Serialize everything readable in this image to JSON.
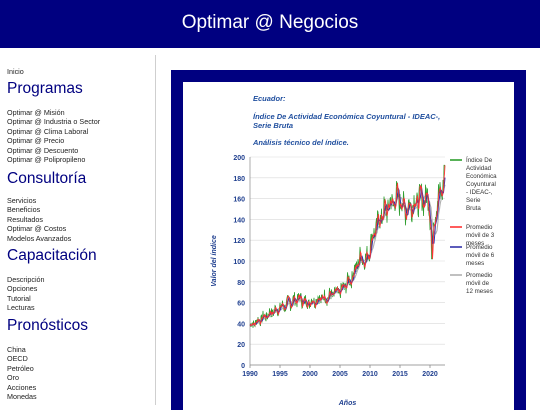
{
  "header": {
    "title": "Optimar @ Negocios"
  },
  "sidebar": {
    "home": "Inicio",
    "sections": [
      {
        "title": "Programas",
        "items": [
          "Optimar @ Misión",
          "Optimar @ Industria o Sector",
          "Optimar @ Clima Laboral",
          "Optimar @ Precio",
          "Optimar @ Descuento",
          "Optimar @ Polipropileno"
        ]
      },
      {
        "title": "Consultoría",
        "items": [
          "Servicios",
          "Beneficios",
          "Resultados",
          "Optimar @ Costos",
          "Modelos Avanzados"
        ]
      },
      {
        "title": "Capacitación",
        "items": [
          "Descripción",
          "Opciones",
          "Tutorial",
          "Lecturas"
        ]
      },
      {
        "title": "Pronósticos",
        "items": [
          "China",
          "OECD",
          "Petróleo",
          "Oro",
          "Acciones",
          "Monedas"
        ]
      }
    ]
  },
  "chart_text": {
    "line1": "Ecuador:",
    "line2a": "Índice De Actividad Económica Coyuntural - IDEAC-,",
    "line2b": "Serie Bruta",
    "line3": "Análisis técnico del índice."
  },
  "colors": {
    "header": "#000080",
    "raw": "#2e9e2e",
    "ma3": "#ff3333",
    "ma6": "#3333aa",
    "ma12": "#b0b0b0",
    "title_text": "#1f4e9e"
  },
  "chart_data": {
    "type": "line",
    "xlabel": "Años",
    "ylabel": "Valor del índice",
    "xlim": [
      1990,
      2022.5
    ],
    "ylim": [
      0,
      200
    ],
    "xticks": [
      1990,
      1995,
      2000,
      2005,
      2010,
      2015,
      2020
    ],
    "yticks": [
      0,
      20,
      40,
      60,
      80,
      100,
      120,
      140,
      160,
      180,
      200
    ],
    "anchors_x": [
      1990,
      1992,
      1994,
      1996,
      1998,
      1999.5,
      2001,
      2003,
      2005,
      2007,
      2008.5,
      2009.3,
      2010.5,
      2012,
      2013.5,
      2014.7,
      2015.8,
      2017,
      2018.5,
      2019.8,
      2020.3,
      2021,
      2022,
      2022.5
    ],
    "anchors_y": [
      38,
      45,
      52,
      58,
      64,
      60,
      63,
      66,
      70,
      85,
      105,
      100,
      125,
      145,
      155,
      162,
      150,
      155,
      160,
      160,
      125,
      155,
      168,
      180
    ],
    "series": [
      {
        "name": "Índice De Actividad Económica Coyuntural - IDEAC-, Serie Bruta"
      },
      {
        "name": "Promedio móvil de 3 meses"
      },
      {
        "name": "Promedio móvil de 6 meses"
      },
      {
        "name": "Promedio móvil de 12 meses"
      }
    ]
  }
}
